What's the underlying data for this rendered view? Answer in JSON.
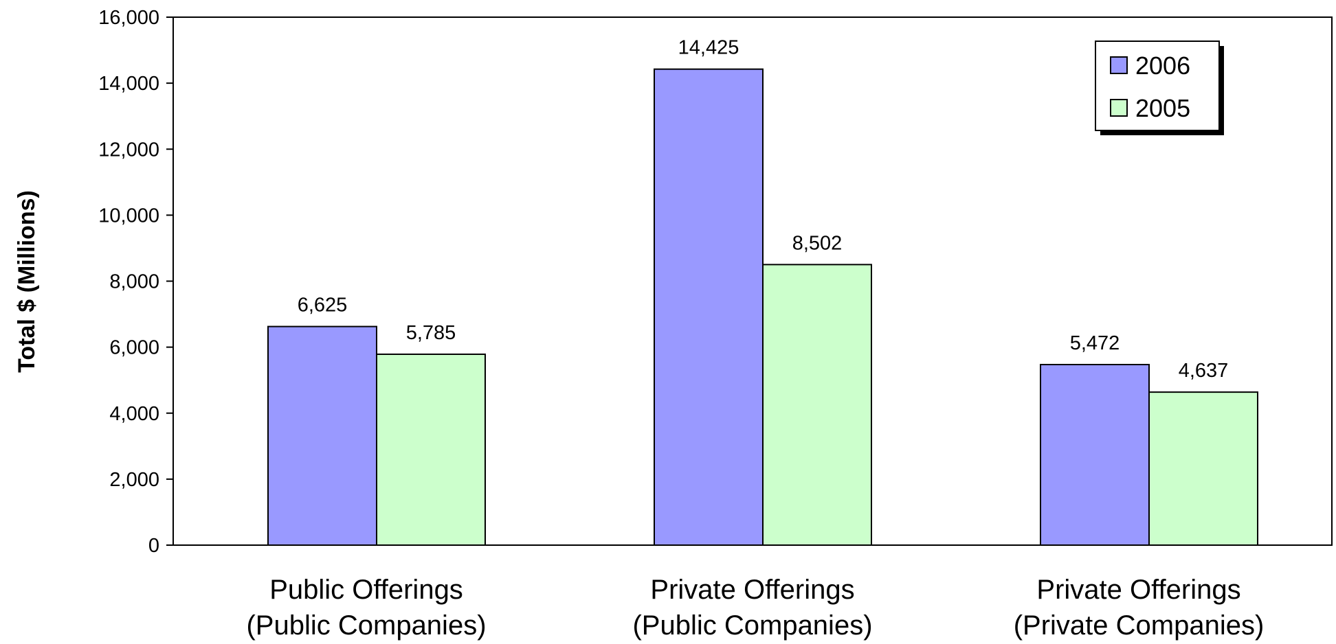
{
  "chart_data": {
    "type": "bar",
    "categories": [
      [
        "Public Offerings",
        "(Public Companies)"
      ],
      [
        "Private Offerings",
        "(Public Companies)"
      ],
      [
        "Private Offerings",
        "(Private Companies)"
      ]
    ],
    "series": [
      {
        "name": "2006",
        "values": [
          6625,
          14425,
          5472
        ],
        "color": "#9999ff",
        "labels": [
          "6,625",
          "14,425",
          "5,472"
        ]
      },
      {
        "name": "2005",
        "values": [
          5785,
          8502,
          4637
        ],
        "color": "#ccffcc",
        "labels": [
          "5,785",
          "8,502",
          "4,637"
        ]
      }
    ],
    "xlabel": "",
    "ylabel": "Total $ (Millions)",
    "ylim": [
      0,
      16000
    ],
    "yticks": [
      0,
      2000,
      4000,
      6000,
      8000,
      10000,
      12000,
      14000,
      16000
    ],
    "ytick_labels": [
      "0",
      "2,000",
      "4,000",
      "6,000",
      "8,000",
      "10,000",
      "12,000",
      "14,000",
      "16,000"
    ],
    "grid": false,
    "legend_position": "top-right",
    "plot_border_color": "#000000"
  }
}
